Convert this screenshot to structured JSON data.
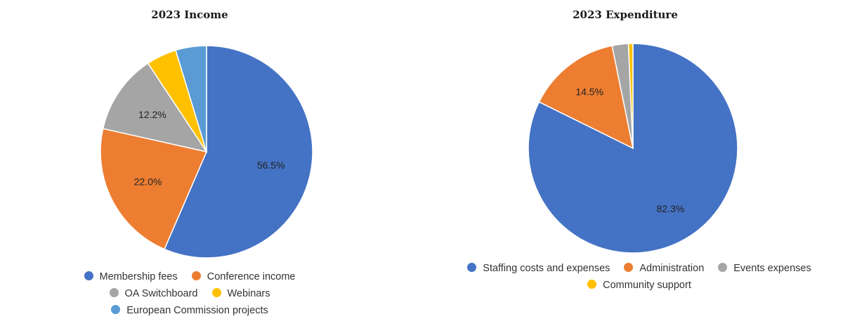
{
  "chart_data": [
    {
      "type": "pie",
      "title": "2023 Income",
      "slices": [
        {
          "label": "Membership fees",
          "value": 56.5,
          "color": "#4472C4",
          "data_label": "56.5%"
        },
        {
          "label": "Conference income",
          "value": 22.0,
          "color": "#ED7D31",
          "data_label": "22.0%"
        },
        {
          "label": "OA Switchboard",
          "value": 12.2,
          "color": "#A5A5A5",
          "data_label": "12.2%"
        },
        {
          "label": "Webinars",
          "value": 4.6,
          "color": "#FFC000",
          "data_label": ""
        },
        {
          "label": "European Commission projects",
          "value": 4.7,
          "color": "#5B9BD5",
          "data_label": ""
        }
      ],
      "legend_position": "bottom"
    },
    {
      "type": "pie",
      "title": "2023 Expenditure",
      "slices": [
        {
          "label": "Staffing costs and expenses",
          "value": 82.3,
          "color": "#4472C4",
          "data_label": "82.3%"
        },
        {
          "label": "Administration",
          "value": 14.5,
          "color": "#ED7D31",
          "data_label": "14.5%"
        },
        {
          "label": "Events expenses",
          "value": 2.5,
          "color": "#A5A5A5",
          "data_label": ""
        },
        {
          "label": "Community support",
          "value": 0.7,
          "color": "#FFC000",
          "data_label": ""
        }
      ],
      "legend_position": "bottom"
    }
  ]
}
